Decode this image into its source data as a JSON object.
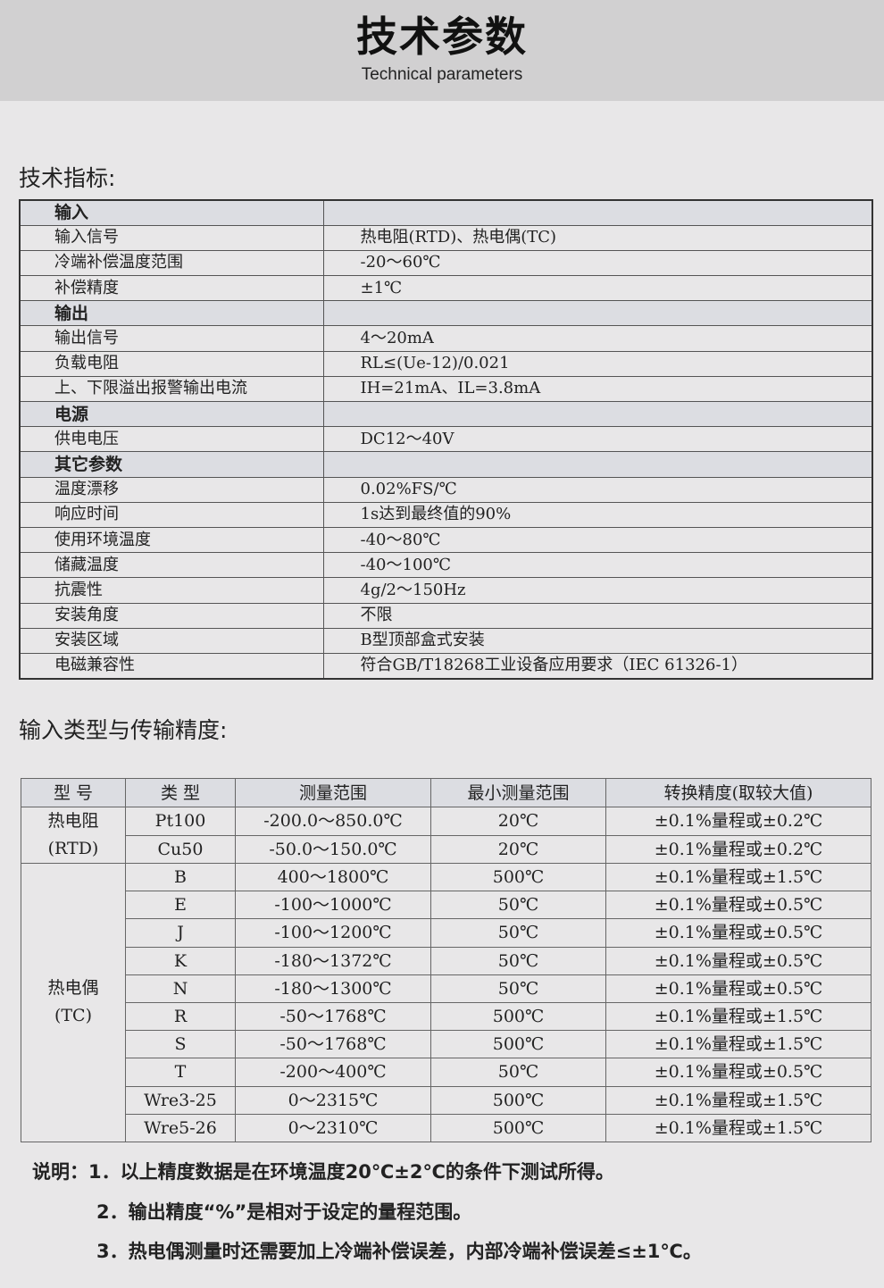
{
  "header": {
    "title": "技术参数",
    "subtitle": "Technical parameters"
  },
  "spec": {
    "title": "技术指标:",
    "rows": [
      {
        "section": true,
        "k": "输入",
        "v": ""
      },
      {
        "k": "输入信号",
        "v": "热电阻(RTD)、热电偶(TC)"
      },
      {
        "k": "冷端补偿温度范围",
        "v": "-20～60℃"
      },
      {
        "k": "补偿精度",
        "v": "±1℃"
      },
      {
        "section": true,
        "k": "输出",
        "v": ""
      },
      {
        "k": "输出信号",
        "v": "4～20mA"
      },
      {
        "k": "负载电阻",
        "v": "RL≤(Ue-12)/0.021"
      },
      {
        "k": "上、下限溢出报警输出电流",
        "v": "IH=21mA、IL=3.8mA"
      },
      {
        "section": true,
        "k": "电源",
        "v": ""
      },
      {
        "k": "供电电压",
        "v": "DC12～40V"
      },
      {
        "section": true,
        "k": "其它参数",
        "v": ""
      },
      {
        "k": "温度漂移",
        "v": "0.02%FS/℃"
      },
      {
        "k": "响应时间",
        "v": "1s达到最终值的90%"
      },
      {
        "k": "使用环境温度",
        "v": "-40～80℃"
      },
      {
        "k": "储藏温度",
        "v": "-40～100℃"
      },
      {
        "k": "抗震性",
        "v": "4g/2～150Hz"
      },
      {
        "k": "安装角度",
        "v": "不限"
      },
      {
        "k": "安装区域",
        "v": "B型顶部盒式安装"
      },
      {
        "k": "电磁兼容性",
        "v": "符合GB/T18268工业设备应用要求（IEC 61326-1）"
      }
    ]
  },
  "accuracy": {
    "title": "输入类型与传输精度:",
    "headers": [
      "型 号",
      "类 型",
      "测量范围",
      "最小测量范围",
      "转换精度(取较大值)"
    ],
    "groups": [
      {
        "name": "热电阻",
        "code": "(RTD)",
        "rows": [
          [
            "Pt100",
            "-200.0～850.0℃",
            "20℃",
            "±0.1%量程或±0.2℃"
          ],
          [
            "Cu50",
            "-50.0～150.0℃",
            "20℃",
            "±0.1%量程或±0.2℃"
          ]
        ]
      },
      {
        "name": "热电偶",
        "code": "(TC)",
        "rows": [
          [
            "B",
            "400～1800℃",
            "500℃",
            "±0.1%量程或±1.5℃"
          ],
          [
            "E",
            "-100～1000℃",
            "50℃",
            "±0.1%量程或±0.5℃"
          ],
          [
            "J",
            "-100～1200℃",
            "50℃",
            "±0.1%量程或±0.5℃"
          ],
          [
            "K",
            "-180～1372℃",
            "50℃",
            "±0.1%量程或±0.5℃"
          ],
          [
            "N",
            "-180～1300℃",
            "50℃",
            "±0.1%量程或±0.5℃"
          ],
          [
            "R",
            "-50～1768℃",
            "500℃",
            "±0.1%量程或±1.5℃"
          ],
          [
            "S",
            "-50～1768℃",
            "500℃",
            "±0.1%量程或±1.5℃"
          ],
          [
            "T",
            "-200～400℃",
            "50℃",
            "±0.1%量程或±0.5℃"
          ],
          [
            "Wre3-25",
            "0～2315℃",
            "500℃",
            "±0.1%量程或±1.5℃"
          ],
          [
            "Wre5-26",
            "0～2310℃",
            "500℃",
            "±0.1%量程或±1.5℃"
          ]
        ]
      }
    ]
  },
  "notes": {
    "prefix": "说明：",
    "items": [
      "1．以上精度数据是在环境温度20℃±2℃的条件下测试所得。",
      "2．输出精度“%”是相对于设定的量程范围。",
      "3．热电偶测量时还需要加上冷端补偿误差，内部冷端补偿误差≤±1℃。"
    ]
  }
}
